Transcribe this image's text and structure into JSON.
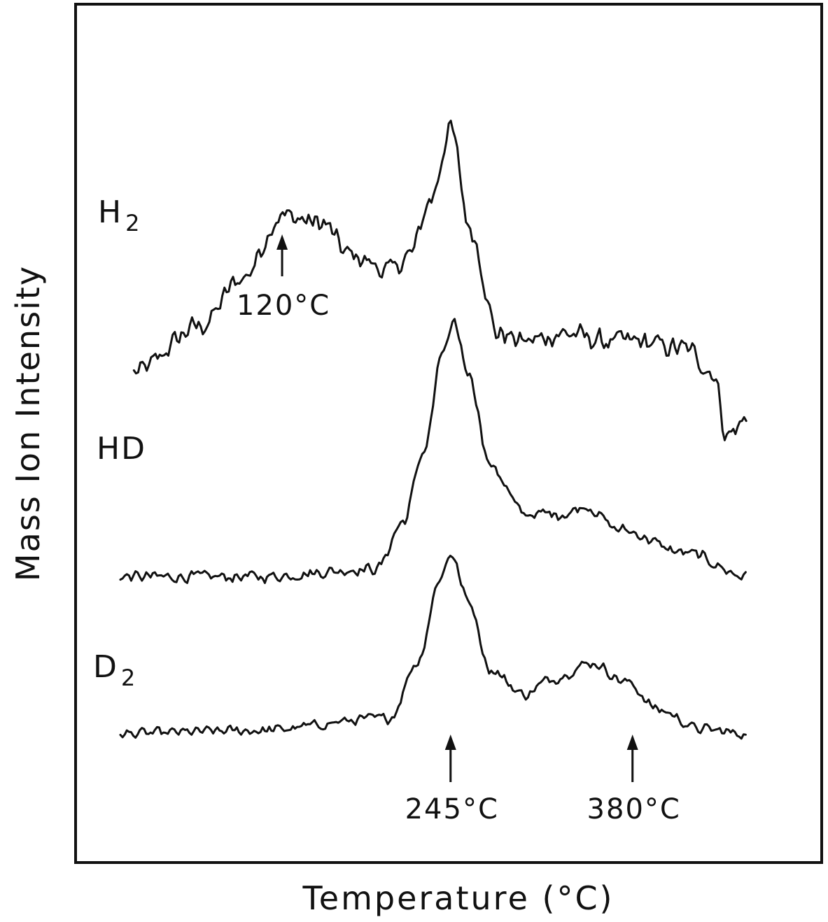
{
  "chart_data": {
    "type": "line",
    "title": "",
    "xlabel": "Temperature (°C)",
    "ylabel": "Mass Ion Intensity",
    "grid": false,
    "legend": "none",
    "x_range": [
      0,
      470
    ],
    "y_range": [
      0,
      4.3
    ],
    "series": [
      {
        "name": "H",
        "subscript": "2",
        "offset": 2.05,
        "noise": 0.085,
        "points": [
          [
            10,
            0.3
          ],
          [
            60,
            0.6
          ],
          [
            90,
            0.9
          ],
          [
            120,
            1.3
          ],
          [
            150,
            1.25
          ],
          [
            170,
            1.05
          ],
          [
            200,
            0.95
          ],
          [
            215,
            1.05
          ],
          [
            230,
            1.4
          ],
          [
            245,
            1.85
          ],
          [
            260,
            1.2
          ],
          [
            280,
            0.55
          ],
          [
            300,
            0.5
          ],
          [
            330,
            0.55
          ],
          [
            360,
            0.5
          ],
          [
            380,
            0.5
          ],
          [
            420,
            0.45
          ],
          [
            440,
            0.3
          ],
          [
            450,
            -0.1
          ],
          [
            465,
            0.0
          ]
        ]
      },
      {
        "name": "HD",
        "offset": 1.0,
        "noise": 0.045,
        "points": [
          [
            0,
            0.05
          ],
          [
            100,
            0.05
          ],
          [
            190,
            0.1
          ],
          [
            210,
            0.4
          ],
          [
            225,
            0.85
          ],
          [
            240,
            1.5
          ],
          [
            248,
            1.65
          ],
          [
            258,
            1.35
          ],
          [
            275,
            0.75
          ],
          [
            300,
            0.45
          ],
          [
            330,
            0.45
          ],
          [
            345,
            0.5
          ],
          [
            370,
            0.35
          ],
          [
            420,
            0.2
          ],
          [
            465,
            0.05
          ]
        ]
      },
      {
        "name": "D",
        "subscript": "2",
        "offset": 0.0,
        "noise": 0.04,
        "points": [
          [
            0,
            0.05
          ],
          [
            100,
            0.07
          ],
          [
            200,
            0.15
          ],
          [
            220,
            0.5
          ],
          [
            238,
            1.05
          ],
          [
            245,
            1.2
          ],
          [
            258,
            0.9
          ],
          [
            275,
            0.45
          ],
          [
            300,
            0.3
          ],
          [
            320,
            0.4
          ],
          [
            350,
            0.5
          ],
          [
            375,
            0.38
          ],
          [
            400,
            0.2
          ],
          [
            430,
            0.08
          ],
          [
            465,
            0.05
          ]
        ]
      }
    ],
    "annotations": [
      {
        "text": "120°C",
        "x": 120,
        "series": "H"
      },
      {
        "text": "245°C",
        "x": 245,
        "series": "D"
      },
      {
        "text": "380°C",
        "x": 380,
        "series": "D"
      }
    ]
  }
}
